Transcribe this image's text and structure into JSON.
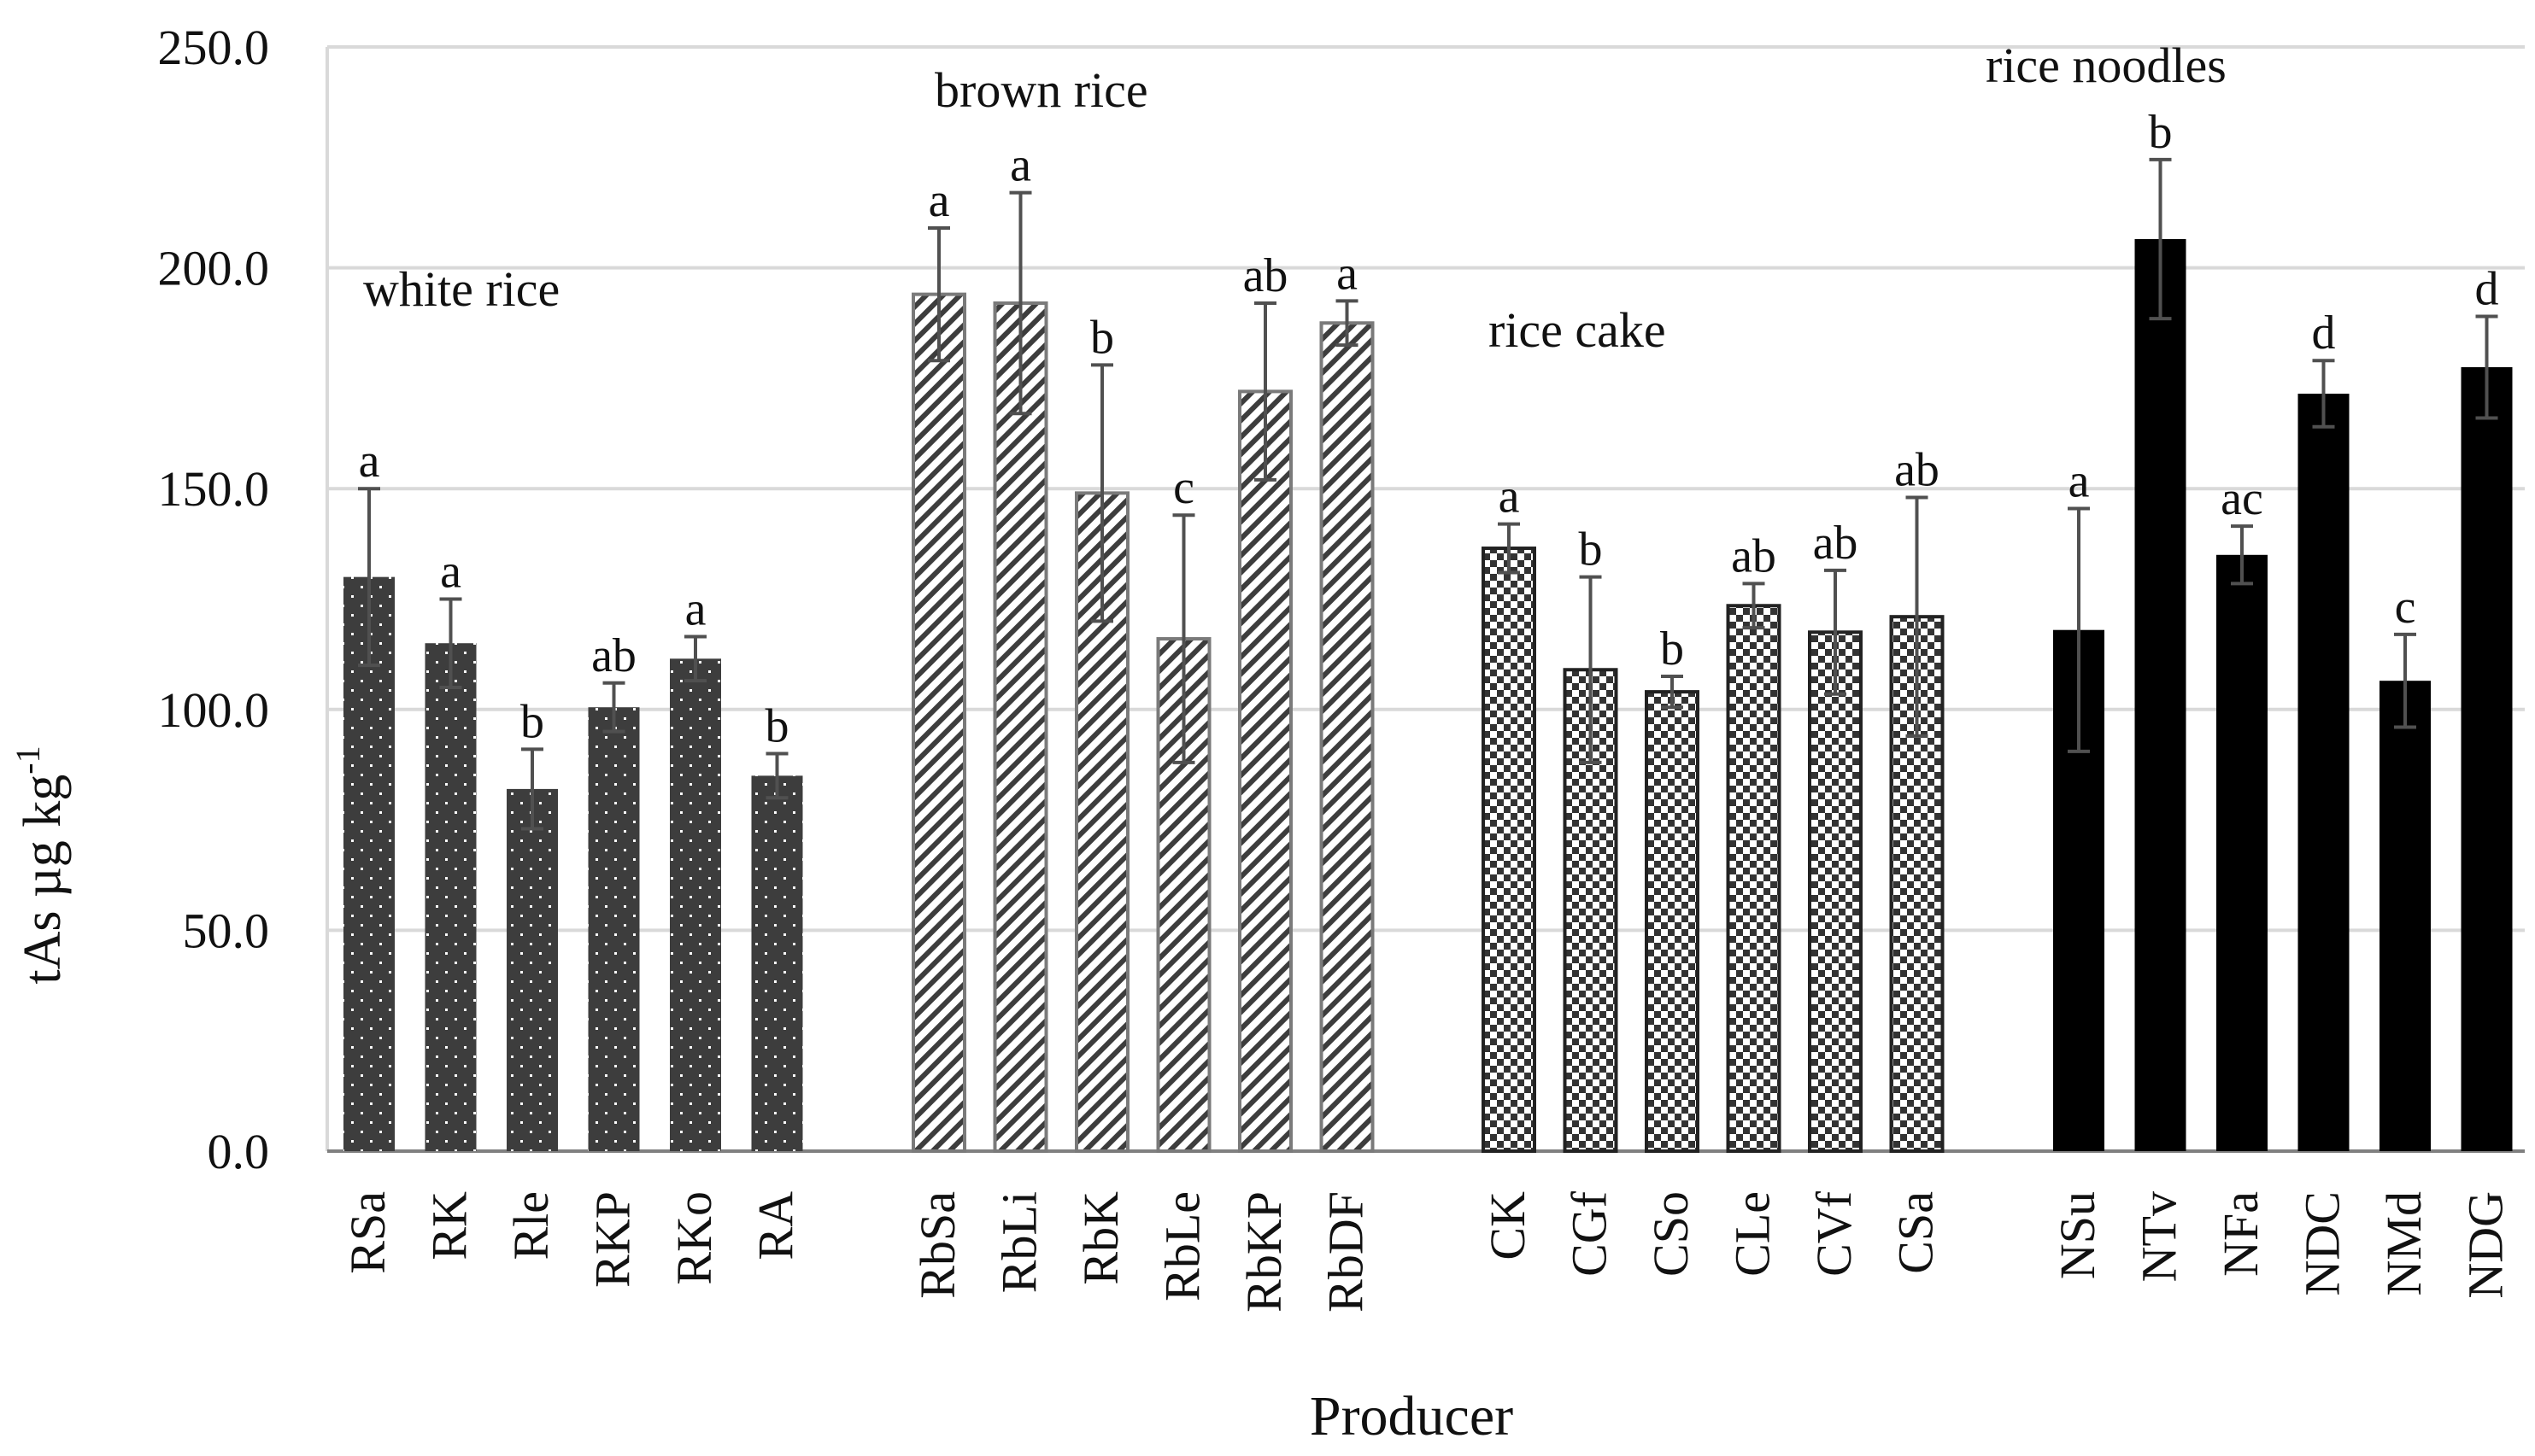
{
  "chart_data": {
    "type": "bar",
    "xlabel": "Producer",
    "ylabel_main": "tAs µg kg",
    "ylabel_sup": "-1",
    "ylim": [
      0,
      250
    ],
    "yticks": [
      "0.0",
      "50.0",
      "100.0",
      "150.0",
      "200.0",
      "250.0"
    ],
    "ytick_values": [
      0,
      50,
      100,
      150,
      200,
      250
    ],
    "grid": true,
    "groups": [
      {
        "name": "white rice",
        "pattern": "dots",
        "categories": [
          "RSa",
          "RK",
          "Rle",
          "RKP",
          "RKo",
          "RA"
        ],
        "values": [
          130,
          115,
          82,
          100.5,
          111.5,
          85
        ],
        "errors": [
          20,
          10,
          9,
          5.5,
          5,
          5
        ],
        "letters": [
          "a",
          "a",
          "b",
          "ab",
          "a",
          "b"
        ]
      },
      {
        "name": "brown rice",
        "pattern": "diagonal",
        "categories": [
          "RbSa",
          "RbLi",
          "RbK",
          "RbLe",
          "RbKP",
          "RbDF"
        ],
        "values": [
          194,
          192,
          149,
          116,
          172,
          187.5
        ],
        "errors": [
          15,
          25,
          29,
          28,
          20,
          5
        ],
        "letters": [
          "a",
          "a",
          "b",
          "c",
          "ab",
          "a"
        ]
      },
      {
        "name": "rice cake",
        "pattern": "checker",
        "categories": [
          "CK",
          "CGf",
          "CSo",
          "CLe",
          "CVf",
          "CSa"
        ],
        "values": [
          136.5,
          109,
          104,
          123.5,
          117.5,
          121
        ],
        "errors": [
          5.5,
          21,
          3.5,
          5,
          14,
          27
        ],
        "letters": [
          "a",
          "b",
          "b",
          "ab",
          "ab",
          "ab"
        ]
      },
      {
        "name": "rice noodles",
        "pattern": "solid",
        "categories": [
          "NSu",
          "NTv",
          "NFa",
          "NDC",
          "NMd",
          "NDG"
        ],
        "values": [
          118,
          206.5,
          135,
          171.5,
          106.5,
          177.5
        ],
        "errors": [
          27.5,
          18,
          6.5,
          7.5,
          10.5,
          11.5
        ],
        "letters": [
          "a",
          "b",
          "ac",
          "d",
          "c",
          "d"
        ]
      }
    ]
  },
  "colors": {
    "dark_bar": "#3d3d3d",
    "black_bar": "#000000",
    "grid": "#d9d9d9",
    "axis": "#808080",
    "error_bar": "#505050"
  }
}
